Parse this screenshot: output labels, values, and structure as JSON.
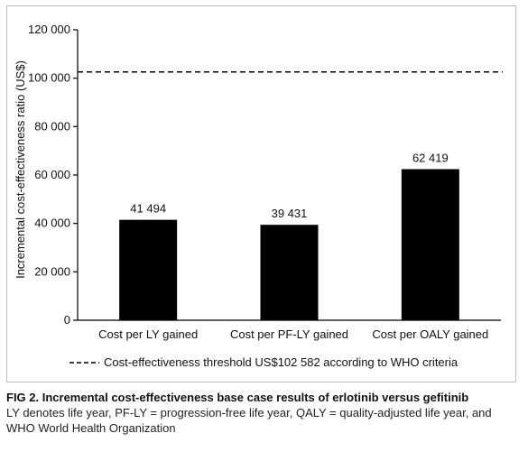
{
  "chart_data": {
    "type": "bar",
    "categories": [
      "Cost per LY gained",
      "Cost per PF-LY gained",
      "Cost per OALY gained"
    ],
    "values": [
      41494,
      39431,
      62419
    ],
    "value_labels": [
      "41 494",
      "39 431",
      "62 419"
    ],
    "ylabel": "Incremental cost-effectiveness ratio (US$)",
    "xlabel": "",
    "ylim": [
      0,
      120000
    ],
    "yticks": [
      0,
      20000,
      40000,
      60000,
      80000,
      100000,
      120000
    ],
    "ytick_labels": [
      "0",
      "20 000",
      "40 000",
      "60 000",
      "80 000",
      "100 000",
      "120 000"
    ],
    "threshold": {
      "value": 102582,
      "label": "Cost-effectiveness threshold US$102 582 according to WHO criteria",
      "style": "dashed"
    },
    "bar_color": "#000000",
    "grid": false,
    "legend_position": "bottom"
  },
  "caption": {
    "title": "FIG 2.  Incremental cost-effectiveness base case results of erlotinib versus gefitinib",
    "notes": "LY denotes life year, PF-LY = progression-free life year, QALY = quality-adjusted life year, and WHO World Health Organization"
  }
}
